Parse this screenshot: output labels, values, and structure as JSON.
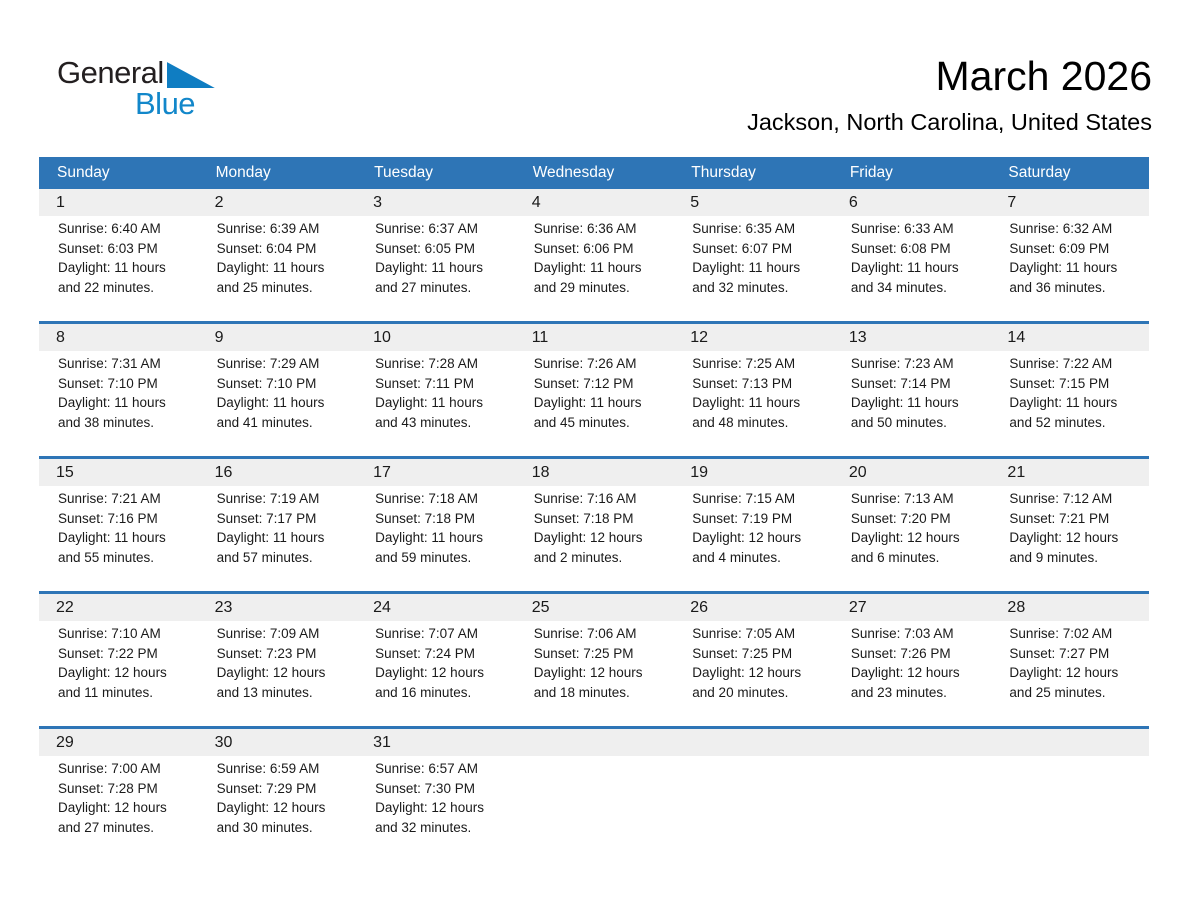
{
  "logo": {
    "part1": "General",
    "part2": "Blue",
    "triangle_icon": "blue-right-triangle"
  },
  "header": {
    "title": "March 2026",
    "subtitle": "Jackson, North Carolina, United States"
  },
  "colors": {
    "header_blue": "#2E75B6",
    "band_gray": "#EFEFEF",
    "logo_blue": "#1287CA",
    "triangle_blue": "#0F7DC2"
  },
  "calendar": {
    "day_names": [
      "Sunday",
      "Monday",
      "Tuesday",
      "Wednesday",
      "Thursday",
      "Friday",
      "Saturday"
    ],
    "weeks": [
      {
        "days": [
          {
            "num": "1",
            "sunrise": "Sunrise: 6:40 AM",
            "sunset": "Sunset: 6:03 PM",
            "daylight": "Daylight: 11 hours and 22 minutes."
          },
          {
            "num": "2",
            "sunrise": "Sunrise: 6:39 AM",
            "sunset": "Sunset: 6:04 PM",
            "daylight": "Daylight: 11 hours and 25 minutes."
          },
          {
            "num": "3",
            "sunrise": "Sunrise: 6:37 AM",
            "sunset": "Sunset: 6:05 PM",
            "daylight": "Daylight: 11 hours and 27 minutes."
          },
          {
            "num": "4",
            "sunrise": "Sunrise: 6:36 AM",
            "sunset": "Sunset: 6:06 PM",
            "daylight": "Daylight: 11 hours and 29 minutes."
          },
          {
            "num": "5",
            "sunrise": "Sunrise: 6:35 AM",
            "sunset": "Sunset: 6:07 PM",
            "daylight": "Daylight: 11 hours and 32 minutes."
          },
          {
            "num": "6",
            "sunrise": "Sunrise: 6:33 AM",
            "sunset": "Sunset: 6:08 PM",
            "daylight": "Daylight: 11 hours and 34 minutes."
          },
          {
            "num": "7",
            "sunrise": "Sunrise: 6:32 AM",
            "sunset": "Sunset: 6:09 PM",
            "daylight": "Daylight: 11 hours and 36 minutes."
          }
        ]
      },
      {
        "days": [
          {
            "num": "8",
            "sunrise": "Sunrise: 7:31 AM",
            "sunset": "Sunset: 7:10 PM",
            "daylight": "Daylight: 11 hours and 38 minutes."
          },
          {
            "num": "9",
            "sunrise": "Sunrise: 7:29 AM",
            "sunset": "Sunset: 7:10 PM",
            "daylight": "Daylight: 11 hours and 41 minutes."
          },
          {
            "num": "10",
            "sunrise": "Sunrise: 7:28 AM",
            "sunset": "Sunset: 7:11 PM",
            "daylight": "Daylight: 11 hours and 43 minutes."
          },
          {
            "num": "11",
            "sunrise": "Sunrise: 7:26 AM",
            "sunset": "Sunset: 7:12 PM",
            "daylight": "Daylight: 11 hours and 45 minutes."
          },
          {
            "num": "12",
            "sunrise": "Sunrise: 7:25 AM",
            "sunset": "Sunset: 7:13 PM",
            "daylight": "Daylight: 11 hours and 48 minutes."
          },
          {
            "num": "13",
            "sunrise": "Sunrise: 7:23 AM",
            "sunset": "Sunset: 7:14 PM",
            "daylight": "Daylight: 11 hours and 50 minutes."
          },
          {
            "num": "14",
            "sunrise": "Sunrise: 7:22 AM",
            "sunset": "Sunset: 7:15 PM",
            "daylight": "Daylight: 11 hours and 52 minutes."
          }
        ]
      },
      {
        "days": [
          {
            "num": "15",
            "sunrise": "Sunrise: 7:21 AM",
            "sunset": "Sunset: 7:16 PM",
            "daylight": "Daylight: 11 hours and 55 minutes."
          },
          {
            "num": "16",
            "sunrise": "Sunrise: 7:19 AM",
            "sunset": "Sunset: 7:17 PM",
            "daylight": "Daylight: 11 hours and 57 minutes."
          },
          {
            "num": "17",
            "sunrise": "Sunrise: 7:18 AM",
            "sunset": "Sunset: 7:18 PM",
            "daylight": "Daylight: 11 hours and 59 minutes."
          },
          {
            "num": "18",
            "sunrise": "Sunrise: 7:16 AM",
            "sunset": "Sunset: 7:18 PM",
            "daylight": "Daylight: 12 hours and 2 minutes."
          },
          {
            "num": "19",
            "sunrise": "Sunrise: 7:15 AM",
            "sunset": "Sunset: 7:19 PM",
            "daylight": "Daylight: 12 hours and 4 minutes."
          },
          {
            "num": "20",
            "sunrise": "Sunrise: 7:13 AM",
            "sunset": "Sunset: 7:20 PM",
            "daylight": "Daylight: 12 hours and 6 minutes."
          },
          {
            "num": "21",
            "sunrise": "Sunrise: 7:12 AM",
            "sunset": "Sunset: 7:21 PM",
            "daylight": "Daylight: 12 hours and 9 minutes."
          }
        ]
      },
      {
        "days": [
          {
            "num": "22",
            "sunrise": "Sunrise: 7:10 AM",
            "sunset": "Sunset: 7:22 PM",
            "daylight": "Daylight: 12 hours and 11 minutes."
          },
          {
            "num": "23",
            "sunrise": "Sunrise: 7:09 AM",
            "sunset": "Sunset: 7:23 PM",
            "daylight": "Daylight: 12 hours and 13 minutes."
          },
          {
            "num": "24",
            "sunrise": "Sunrise: 7:07 AM",
            "sunset": "Sunset: 7:24 PM",
            "daylight": "Daylight: 12 hours and 16 minutes."
          },
          {
            "num": "25",
            "sunrise": "Sunrise: 7:06 AM",
            "sunset": "Sunset: 7:25 PM",
            "daylight": "Daylight: 12 hours and 18 minutes."
          },
          {
            "num": "26",
            "sunrise": "Sunrise: 7:05 AM",
            "sunset": "Sunset: 7:25 PM",
            "daylight": "Daylight: 12 hours and 20 minutes."
          },
          {
            "num": "27",
            "sunrise": "Sunrise: 7:03 AM",
            "sunset": "Sunset: 7:26 PM",
            "daylight": "Daylight: 12 hours and 23 minutes."
          },
          {
            "num": "28",
            "sunrise": "Sunrise: 7:02 AM",
            "sunset": "Sunset: 7:27 PM",
            "daylight": "Daylight: 12 hours and 25 minutes."
          }
        ]
      },
      {
        "days": [
          {
            "num": "29",
            "sunrise": "Sunrise: 7:00 AM",
            "sunset": "Sunset: 7:28 PM",
            "daylight": "Daylight: 12 hours and 27 minutes."
          },
          {
            "num": "30",
            "sunrise": "Sunrise: 6:59 AM",
            "sunset": "Sunset: 7:29 PM",
            "daylight": "Daylight: 12 hours and 30 minutes."
          },
          {
            "num": "31",
            "sunrise": "Sunrise: 6:57 AM",
            "sunset": "Sunset: 7:30 PM",
            "daylight": "Daylight: 12 hours and 32 minutes."
          },
          null,
          null,
          null,
          null
        ]
      }
    ]
  }
}
